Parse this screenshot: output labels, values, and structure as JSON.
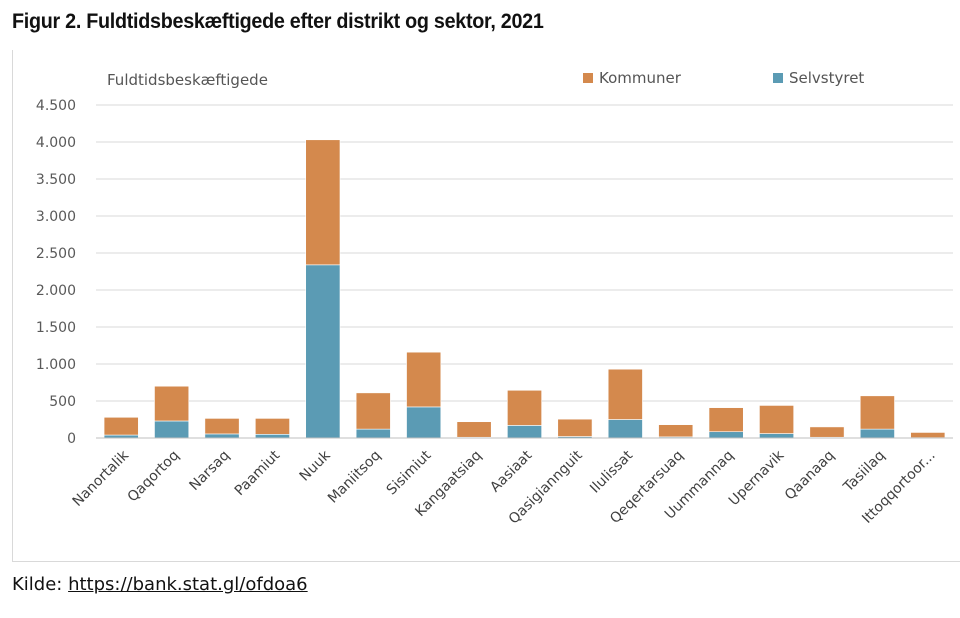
{
  "figure": {
    "title": "Figur 2. Fuldtidsbeskæftigede efter distrikt og sektor, 2021",
    "source_label": "Kilde: ",
    "source_link": "https://bank.stat.gl/ofdoa6"
  },
  "chart_data": {
    "type": "bar",
    "stacked": true,
    "title": "",
    "ylabel": "Fuldtidsbeskæftigede",
    "xlabel": "",
    "ylim": [
      0,
      4500
    ],
    "yticks": [
      0,
      500,
      1000,
      1500,
      2000,
      2500,
      3000,
      3500,
      4000,
      4500
    ],
    "ytick_labels": [
      "0",
      "500",
      "1.000",
      "1.500",
      "2.000",
      "2.500",
      "3.000",
      "3.500",
      "4.000",
      "4.500"
    ],
    "grid": true,
    "legend_position": "top-right",
    "categories": [
      "Nanortalik",
      "Qaqortoq",
      "Narsaq",
      "Paamiut",
      "Nuuk",
      "Maniitsoq",
      "Sisimiut",
      "Kangaatsiaq",
      "Aasiaat",
      "Qasigiannguit",
      "Ilulissat",
      "Qeqertarsuaq",
      "Uummannaq",
      "Upernavik",
      "Qaanaaq",
      "Tasiilaq",
      "Ittoqqortoor..."
    ],
    "series": [
      {
        "name": "Selvstyret",
        "color": "#5b9bb4",
        "values": [
          40,
          230,
          55,
          50,
          2340,
          120,
          420,
          10,
          170,
          20,
          250,
          15,
          85,
          60,
          10,
          120,
          5
        ]
      },
      {
        "name": "Kommuner",
        "color": "#d4894d",
        "values": [
          240,
          470,
          210,
          215,
          1690,
          490,
          740,
          210,
          475,
          235,
          680,
          165,
          325,
          380,
          140,
          450,
          70
        ]
      }
    ],
    "legend_order": [
      "Kommuner",
      "Selvstyret"
    ]
  }
}
